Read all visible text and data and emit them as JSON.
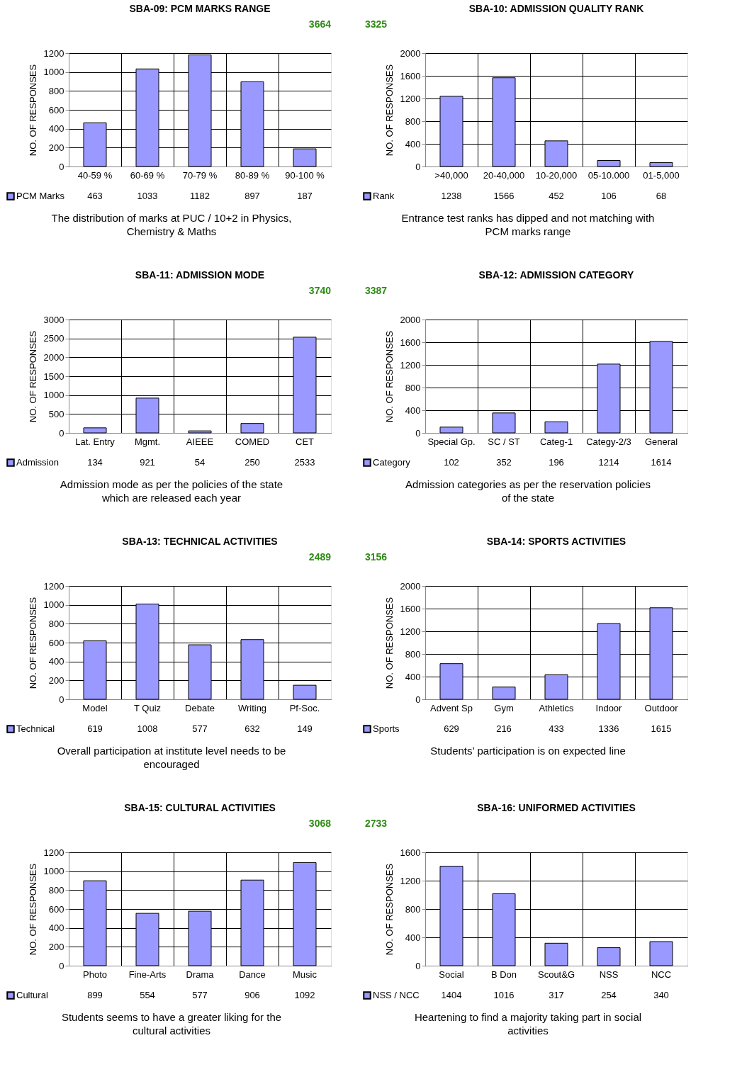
{
  "chart_data": [
    {
      "type": "bar",
      "title": "SBA-09: PCM MARKS RANGE",
      "ylabel": "NO. OF RESPONSES",
      "categories": [
        "40-59 %",
        "60-69 %",
        "70-79 %",
        "80-89 %",
        "90-100 %"
      ],
      "series": [
        {
          "name": "PCM Marks",
          "color": "#9999ff",
          "values": [
            463,
            1033,
            1182,
            897,
            187
          ]
        }
      ],
      "ylim": [
        0,
        1200
      ],
      "yticks": [
        0,
        200,
        400,
        600,
        800,
        1000,
        1200
      ],
      "grid": true,
      "legend": "bottom",
      "data_labels": true,
      "annotations": [
        "3664",
        "The distribution of marks at PUC / 10+2 in Physics, Chemistry & Maths"
      ]
    },
    {
      "type": "bar",
      "title": "SBA-10: ADMISSION QUALITY RANK",
      "ylabel": "NO. OF RESPONSES",
      "categories": [
        ">40,000",
        "20-40,000",
        "10-20,000",
        "05-10.000",
        "01-5,000"
      ],
      "series": [
        {
          "name": "Rank",
          "color": "#9999ff",
          "values": [
            1238,
            1566,
            452,
            106,
            68
          ]
        }
      ],
      "ylim": [
        0,
        2000
      ],
      "yticks": [
        0,
        400,
        800,
        1200,
        1600,
        2000
      ],
      "grid": true,
      "legend": "bottom",
      "data_labels": true,
      "annotations": [
        "3325",
        "Entrance test ranks has dipped and not matching with PCM marks range"
      ]
    },
    {
      "type": "bar",
      "title": "SBA-11: ADMISSION MODE",
      "ylabel": "NO. OF RESPONSES",
      "categories": [
        "Lat. Entry",
        "Mgmt.",
        "AIEEE",
        "COMED",
        "CET"
      ],
      "series": [
        {
          "name": "Admission",
          "color": "#9999ff",
          "values": [
            134,
            921,
            54,
            250,
            2533
          ]
        }
      ],
      "ylim": [
        0,
        3000
      ],
      "yticks": [
        0,
        500,
        1000,
        1500,
        2000,
        2500,
        3000
      ],
      "grid": true,
      "legend": "bottom",
      "data_labels": true,
      "annotations": [
        "3740",
        "Admission mode as per the policies of the state which are released each year"
      ]
    },
    {
      "type": "bar",
      "title": "SBA-12: ADMISSION CATEGORY",
      "ylabel": "NO. OF RESPONSES",
      "categories": [
        "Special Gp.",
        "SC / ST",
        "Categ-1",
        "Categy-2/3",
        "General"
      ],
      "series": [
        {
          "name": "Category",
          "color": "#9999ff",
          "values": [
            102,
            352,
            196,
            1214,
            1614
          ]
        }
      ],
      "ylim": [
        0,
        2000
      ],
      "yticks": [
        0,
        400,
        800,
        1200,
        1600,
        2000
      ],
      "grid": true,
      "legend": "bottom",
      "data_labels": true,
      "annotations": [
        "3387",
        "Admission categories as per the reservation policies of the state"
      ]
    },
    {
      "type": "bar",
      "title": "SBA-13: TECHNICAL ACTIVITIES",
      "ylabel": "NO. OF RESPONSES",
      "categories": [
        "Model",
        "T Quiz",
        "Debate",
        "Writing",
        "Pf-Soc."
      ],
      "series": [
        {
          "name": "Technical",
          "color": "#9999ff",
          "values": [
            619,
            1008,
            577,
            632,
            149
          ]
        }
      ],
      "ylim": [
        0,
        1200
      ],
      "yticks": [
        0,
        200,
        400,
        600,
        800,
        1000,
        1200
      ],
      "grid": true,
      "legend": "bottom",
      "data_labels": true,
      "annotations": [
        "2489",
        "Overall participation at institute level needs to be encouraged"
      ]
    },
    {
      "type": "bar",
      "title": "SBA-14: SPORTS ACTIVITIES",
      "ylabel": "NO. OF RESPONSES",
      "categories": [
        "Advent Sp",
        "Gym",
        "Athletics",
        "Indoor",
        "Outdoor"
      ],
      "series": [
        {
          "name": "Sports",
          "color": "#9999ff",
          "values": [
            629,
            216,
            433,
            1336,
            1615
          ]
        }
      ],
      "ylim": [
        0,
        2000
      ],
      "yticks": [
        0,
        400,
        800,
        1200,
        1600,
        2000
      ],
      "grid": true,
      "legend": "bottom",
      "data_labels": true,
      "annotations": [
        "3156",
        "Students’ participation is on expected line"
      ]
    },
    {
      "type": "bar",
      "title": "SBA-15: CULTURAL ACTIVITIES",
      "ylabel": "NO. OF RESPONSES",
      "categories": [
        "Photo",
        "Fine-Arts",
        "Drama",
        "Dance",
        "Music"
      ],
      "series": [
        {
          "name": "Cultural",
          "color": "#9999ff",
          "values": [
            899,
            554,
            577,
            906,
            1092
          ]
        }
      ],
      "ylim": [
        0,
        1200
      ],
      "yticks": [
        0,
        200,
        400,
        600,
        800,
        1000,
        1200
      ],
      "grid": true,
      "legend": "bottom",
      "data_labels": true,
      "annotations": [
        "3068",
        "Students seems to have a greater liking for the cultural activities"
      ]
    },
    {
      "type": "bar",
      "title": "SBA-16: UNIFORMED ACTIVITIES",
      "ylabel": "NO. OF RESPONSES",
      "categories": [
        "Social",
        "B Don",
        "Scout&G",
        "NSS",
        "NCC"
      ],
      "series": [
        {
          "name": "NSS / NCC",
          "color": "#9999ff",
          "values": [
            1404,
            1016,
            317,
            254,
            340
          ]
        }
      ],
      "ylim": [
        0,
        1600
      ],
      "yticks": [
        0,
        400,
        800,
        1200,
        1600
      ],
      "grid": true,
      "legend": "bottom",
      "data_labels": true,
      "annotations": [
        "2733",
        "Heartening to find a majority taking part in social activities"
      ]
    }
  ]
}
